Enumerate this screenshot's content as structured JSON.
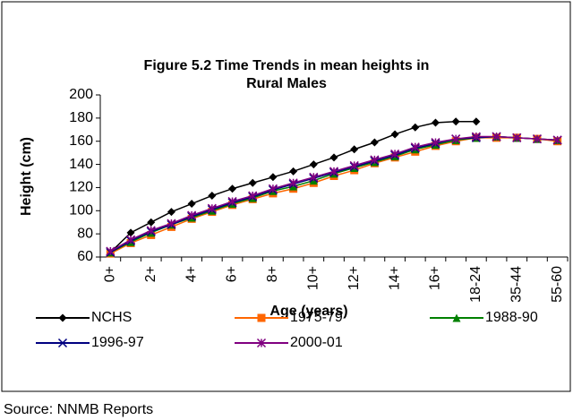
{
  "chart_data": {
    "type": "line",
    "title": "Figure 5.2 Time Trends in mean heights in Rural Males",
    "x_label": "Age (years)",
    "y_label": "Height (cm)",
    "source": "Source: NNMB Reports",
    "categories": [
      "0+",
      null,
      "2+",
      null,
      "4+",
      null,
      "6+",
      null,
      "8+",
      null,
      "10+",
      null,
      "12+",
      null,
      "14+",
      null,
      "16+",
      null,
      "18-24",
      null,
      "35-44",
      null,
      "55-60"
    ],
    "ylim": [
      60,
      200
    ],
    "yticks": [
      60,
      80,
      100,
      120,
      140,
      160,
      180,
      200
    ],
    "grid": false,
    "legend": "bottom",
    "series": [
      {
        "name": "NCHS",
        "color": "#000000",
        "marker": "diamond",
        "values": [
          64,
          81,
          90,
          99,
          106,
          113,
          119,
          124,
          129,
          134,
          140,
          146,
          153,
          159,
          166,
          172,
          176,
          177,
          177,
          null,
          null,
          null,
          null
        ]
      },
      {
        "name": "1975-79",
        "color": "#ff6600",
        "marker": "square",
        "values": [
          63,
          72,
          79,
          86,
          93,
          99,
          105,
          110,
          115,
          119,
          124,
          130,
          135,
          141,
          146,
          151,
          156,
          160,
          163,
          163,
          163,
          162,
          160
        ]
      },
      {
        "name": "1988-90",
        "color": "#008000",
        "marker": "triangle",
        "values": [
          64,
          73,
          81,
          88,
          94,
          100,
          106,
          111,
          117,
          121,
          126,
          132,
          137,
          142,
          147,
          153,
          157,
          161,
          163,
          164,
          163,
          162,
          161
        ]
      },
      {
        "name": "1996-97",
        "color": "#000080",
        "marker": "x",
        "values": [
          64,
          74,
          82,
          88,
          95,
          101,
          107,
          112,
          118,
          123,
          128,
          133,
          138,
          143,
          148,
          154,
          158,
          162,
          163,
          164,
          163,
          162,
          161
        ]
      },
      {
        "name": "2000-01",
        "color": "#800080",
        "marker": "star",
        "values": [
          65,
          75,
          83,
          89,
          96,
          102,
          108,
          113,
          119,
          124,
          129,
          134,
          139,
          144,
          149,
          155,
          159,
          162,
          164,
          164,
          163,
          162,
          161
        ]
      }
    ]
  }
}
